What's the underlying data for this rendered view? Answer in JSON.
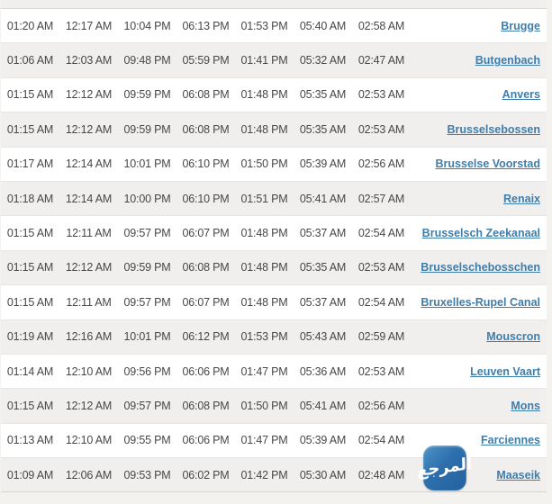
{
  "table": {
    "rows": [
      {
        "times": [
          "01:20 AM",
          "12:17 AM",
          "10:04 PM",
          "06:13 PM",
          "01:53 PM",
          "05:40 AM",
          "02:58 AM"
        ],
        "city": "Brugge"
      },
      {
        "times": [
          "01:06 AM",
          "12:03 AM",
          "09:48 PM",
          "05:59 PM",
          "01:41 PM",
          "05:32 AM",
          "02:47 AM"
        ],
        "city": "Butgenbach"
      },
      {
        "times": [
          "01:15 AM",
          "12:12 AM",
          "09:59 PM",
          "06:08 PM",
          "01:48 PM",
          "05:35 AM",
          "02:53 AM"
        ],
        "city": "Anvers"
      },
      {
        "times": [
          "01:15 AM",
          "12:12 AM",
          "09:59 PM",
          "06:08 PM",
          "01:48 PM",
          "05:35 AM",
          "02:53 AM"
        ],
        "city": "Brusselsebossen"
      },
      {
        "times": [
          "01:17 AM",
          "12:14 AM",
          "10:01 PM",
          "06:10 PM",
          "01:50 PM",
          "05:39 AM",
          "02:56 AM"
        ],
        "city": "Brusselse Voorstad"
      },
      {
        "times": [
          "01:18 AM",
          "12:14 AM",
          "10:00 PM",
          "06:10 PM",
          "01:51 PM",
          "05:41 AM",
          "02:57 AM"
        ],
        "city": "Renaix"
      },
      {
        "times": [
          "01:15 AM",
          "12:11 AM",
          "09:57 PM",
          "06:07 PM",
          "01:48 PM",
          "05:37 AM",
          "02:54 AM"
        ],
        "city": "Brusselsch Zeekanaal"
      },
      {
        "times": [
          "01:15 AM",
          "12:12 AM",
          "09:59 PM",
          "06:08 PM",
          "01:48 PM",
          "05:35 AM",
          "02:53 AM"
        ],
        "city": "Brusselschebosschen"
      },
      {
        "times": [
          "01:15 AM",
          "12:11 AM",
          "09:57 PM",
          "06:07 PM",
          "01:48 PM",
          "05:37 AM",
          "02:54 AM"
        ],
        "city": "Bruxelles-Rupel Canal"
      },
      {
        "times": [
          "01:19 AM",
          "12:16 AM",
          "10:01 PM",
          "06:12 PM",
          "01:53 PM",
          "05:43 AM",
          "02:59 AM"
        ],
        "city": "Mouscron"
      },
      {
        "times": [
          "01:14 AM",
          "12:10 AM",
          "09:56 PM",
          "06:06 PM",
          "01:47 PM",
          "05:36 AM",
          "02:53 AM"
        ],
        "city": "Leuven Vaart"
      },
      {
        "times": [
          "01:15 AM",
          "12:12 AM",
          "09:57 PM",
          "06:08 PM",
          "01:50 PM",
          "05:41 AM",
          "02:56 AM"
        ],
        "city": "Mons"
      },
      {
        "times": [
          "01:13 AM",
          "12:10 AM",
          "09:55 PM",
          "06:06 PM",
          "01:47 PM",
          "05:39 AM",
          "02:54 AM"
        ],
        "city": "Farciennes"
      },
      {
        "times": [
          "01:09 AM",
          "12:06 AM",
          "09:53 PM",
          "06:02 PM",
          "01:42 PM",
          "05:30 AM",
          "02:48 AM"
        ],
        "city": "Maaseik"
      }
    ]
  },
  "logo": {
    "text": "المرجع"
  },
  "colors": {
    "link_blue": "#3f7dab",
    "logo_blue": "#2d6fad",
    "stripe_gray": "#f0efed",
    "time_text": "#474747",
    "page_bg": "#f3f2ef"
  }
}
